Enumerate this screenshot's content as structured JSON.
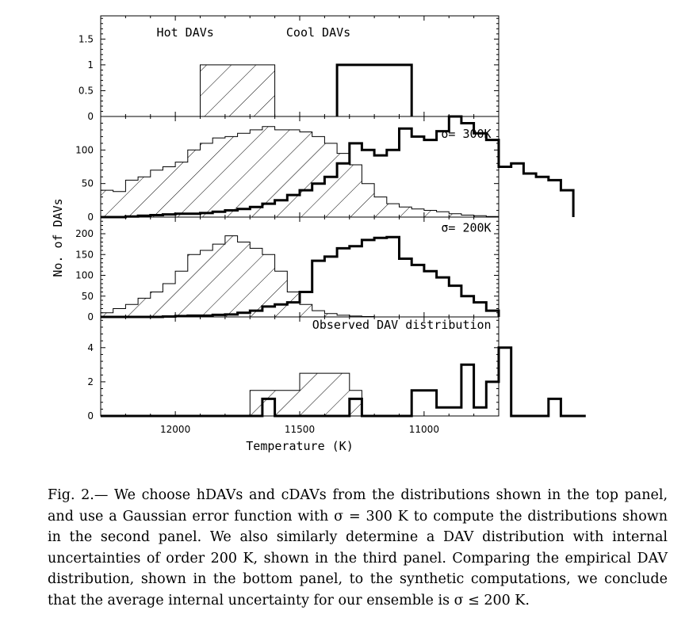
{
  "chart_data": [
    {
      "type": "histogram",
      "panel": "top",
      "labels": [
        {
          "text": "Hot DAVs",
          "x": 11960,
          "y": 1.55
        },
        {
          "text": "Cool DAVs",
          "x": 11425,
          "y": 1.55
        }
      ],
      "xlim": [
        12300,
        10700
      ],
      "ylim": [
        0,
        1.95
      ],
      "yticks": [
        0,
        0.5,
        1,
        1.5
      ],
      "ytick_labels": [
        "0",
        "0.5",
        "1",
        "1.5"
      ],
      "bin_width": 50,
      "series": [
        {
          "style": "hatched",
          "x_start": 11900,
          "counts": [
            1,
            1,
            1,
            1,
            1,
            1
          ]
        },
        {
          "style": "bold",
          "x_start": 11350,
          "counts": [
            1,
            1,
            1,
            1,
            1,
            1
          ]
        }
      ]
    },
    {
      "type": "histogram",
      "panel": "sigma300",
      "labels": [
        {
          "text": "σ= 300K",
          "x": 10730,
          "y": 118,
          "anchor": "end"
        }
      ],
      "xlim": [
        12300,
        10700
      ],
      "ylim": [
        0,
        150
      ],
      "yticks": [
        0,
        50,
        100
      ],
      "ytick_labels": [
        "0",
        "50",
        "100"
      ],
      "bin_width": 50,
      "series": [
        {
          "style": "hatched",
          "x_start": 12300,
          "counts": [
            40,
            38,
            55,
            60,
            70,
            75,
            82,
            100,
            110,
            118,
            120,
            125,
            130,
            135,
            130,
            130,
            127,
            120,
            110,
            95,
            78,
            50,
            30,
            20,
            15,
            12,
            10,
            8,
            5,
            3,
            2,
            1
          ]
        },
        {
          "style": "bold",
          "x_start": 12300,
          "counts": [
            0,
            0,
            1,
            2,
            3,
            4,
            5,
            5,
            6,
            8,
            10,
            12,
            15,
            20,
            25,
            33,
            40,
            50,
            60,
            80,
            110,
            100,
            92,
            100,
            132,
            120,
            115,
            128,
            150,
            140,
            125,
            115,
            75,
            80,
            65,
            60,
            55,
            40
          ]
        }
      ]
    },
    {
      "type": "histogram",
      "panel": "sigma200",
      "labels": [
        {
          "text": "σ= 200K",
          "x": 10730,
          "y": 205,
          "anchor": "end"
        }
      ],
      "xlim": [
        12300,
        10700
      ],
      "ylim": [
        0,
        240
      ],
      "yticks": [
        0,
        50,
        100,
        150,
        200
      ],
      "ytick_labels": [
        "0",
        "50",
        "100",
        "150",
        "200"
      ],
      "bin_width": 50,
      "series": [
        {
          "style": "hatched",
          "x_start": 12300,
          "counts": [
            10,
            20,
            30,
            45,
            60,
            80,
            110,
            150,
            160,
            175,
            195,
            180,
            165,
            150,
            110,
            60,
            30,
            15,
            8,
            4,
            2,
            1
          ]
        },
        {
          "style": "bold",
          "x_start": 12300,
          "counts": [
            0,
            0,
            0,
            0,
            0,
            1,
            2,
            3,
            3,
            5,
            6,
            10,
            15,
            25,
            30,
            35,
            60,
            135,
            145,
            165,
            170,
            185,
            190,
            192,
            140,
            125,
            110,
            95,
            75,
            50,
            35,
            15
          ]
        }
      ]
    },
    {
      "type": "histogram",
      "panel": "observed",
      "labels": [
        {
          "text": "Observed DAV distribution",
          "x": 10730,
          "y": 5.1,
          "anchor": "end"
        }
      ],
      "xlim": [
        12300,
        10700
      ],
      "ylim": [
        0,
        5.8
      ],
      "yticks": [
        0,
        2,
        4
      ],
      "ytick_labels": [
        "0",
        "2",
        "4"
      ],
      "bin_width": 50,
      "series": [
        {
          "style": "hatched",
          "x_start": 12300,
          "counts": [
            0,
            0,
            0,
            0,
            0,
            0,
            0,
            0,
            0,
            0,
            0,
            0,
            1.5,
            1.5,
            1.5,
            1.5,
            2.5,
            2.5,
            2.5,
            2.5,
            1.5
          ]
        },
        {
          "style": "bold",
          "x_start": 12300,
          "counts": [
            0,
            0,
            0,
            0,
            0,
            0,
            0,
            0,
            0,
            0,
            0,
            0,
            0,
            1,
            0,
            0,
            0,
            0,
            0,
            0,
            1,
            0,
            0,
            0,
            0,
            1.5,
            1.5,
            0.5,
            0.5,
            3,
            0.5,
            2,
            4,
            0,
            0,
            0,
            1,
            0,
            0
          ]
        }
      ]
    }
  ],
  "axes": {
    "xlabel": "Temperature (K)",
    "ylabel": "No. of DAVs",
    "xticks": [
      12000,
      11500,
      11000
    ],
    "xtick_labels": [
      "12000",
      "11500",
      "11000"
    ]
  },
  "caption": {
    "label": "Fig. 2.",
    "text": "— We choose hDAVs and cDAVs from the distributions shown in the top panel, and use a Gaussian error function with σ = 300 K to compute the distributions shown in the second panel. We also similarly determine a DAV distribution with internal uncertainties of order 200 K, shown in the third panel. Comparing the empirical DAV distribution, shown in the bottom panel, to the synthetic computations, we conclude that the average internal uncertainty for our ensemble is σ ≤ 200 K."
  },
  "colors": {
    "ink": "#000000",
    "background": "#ffffff"
  }
}
